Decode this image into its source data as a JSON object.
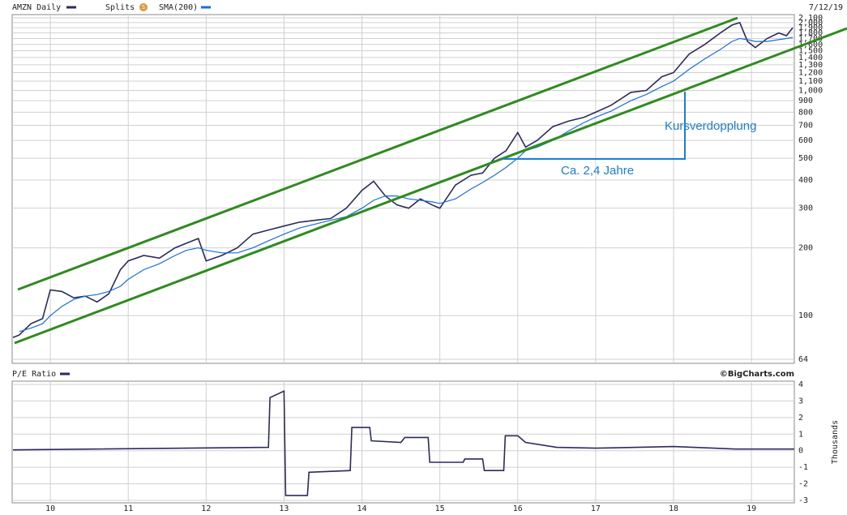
{
  "chart_data": [
    {
      "type": "line",
      "date_label": "7/12/19",
      "splits_label": "Splits",
      "splits_icon": "S",
      "log_scale": true,
      "grid": true,
      "annotations": [
        "Kursverdopplung",
        "Ca. 2,4 Jahre"
      ],
      "xlim": [
        2009.51,
        2019.55
      ],
      "ylim": [
        64,
        2100
      ],
      "yticks": [
        64,
        100,
        200,
        300,
        400,
        500,
        600,
        700,
        800,
        900,
        {
          "value": 1000,
          "label": "1,000"
        },
        {
          "value": 1100,
          "label": "1,100"
        },
        {
          "value": 1200,
          "label": "1,200"
        },
        {
          "value": 1300,
          "label": "1,300"
        },
        {
          "value": 1400,
          "label": "1,400"
        },
        {
          "value": 1500,
          "label": "1,500"
        },
        {
          "value": 1600,
          "label": "1,600"
        },
        {
          "value": 1700,
          "label": "1,700"
        },
        {
          "value": 1800,
          "label": "1,800"
        },
        {
          "value": 1900,
          "label": "1,900"
        },
        {
          "value": 2000,
          "label": "2,000"
        },
        {
          "value": 2100,
          "label": "2,100"
        }
      ],
      "x": [
        2009.52,
        2009.6,
        2009.75,
        2009.9,
        2010.0,
        2010.15,
        2010.3,
        2010.45,
        2010.6,
        2010.75,
        2010.9,
        2011.0,
        2011.2,
        2011.4,
        2011.6,
        2011.75,
        2011.9,
        2012.0,
        2012.2,
        2012.4,
        2012.6,
        2012.8,
        2013.0,
        2013.2,
        2013.4,
        2013.6,
        2013.8,
        2014.0,
        2014.15,
        2014.3,
        2014.45,
        2014.6,
        2014.75,
        2014.9,
        2015.0,
        2015.2,
        2015.4,
        2015.55,
        2015.7,
        2015.85,
        2016.0,
        2016.1,
        2016.25,
        2016.45,
        2016.65,
        2016.85,
        2017.0,
        2017.2,
        2017.45,
        2017.65,
        2017.85,
        2018.0,
        2018.2,
        2018.4,
        2018.6,
        2018.75,
        2018.85,
        2018.95,
        2019.05,
        2019.2,
        2019.35,
        2019.45,
        2019.53
      ],
      "series": [
        {
          "name": "AMZN Daily",
          "color": "#2b2b5e",
          "values": [
            80,
            82,
            92,
            97,
            130,
            128,
            120,
            122,
            115,
            125,
            160,
            175,
            185,
            180,
            200,
            210,
            220,
            175,
            185,
            200,
            230,
            240,
            250,
            260,
            265,
            270,
            300,
            360,
            395,
            340,
            310,
            300,
            330,
            310,
            300,
            380,
            420,
            430,
            500,
            540,
            650,
            560,
            600,
            690,
            730,
            760,
            800,
            860,
            980,
            1000,
            1150,
            1200,
            1450,
            1600,
            1800,
            1950,
            2000,
            1650,
            1550,
            1700,
            1800,
            1750,
            1900
          ]
        },
        {
          "name": "SMA(200)",
          "color": "#1a6fd6",
          "values": [
            null,
            85,
            88,
            92,
            100,
            110,
            118,
            122,
            124,
            128,
            135,
            145,
            160,
            170,
            185,
            195,
            200,
            195,
            190,
            190,
            200,
            215,
            230,
            245,
            255,
            265,
            275,
            300,
            325,
            340,
            340,
            330,
            325,
            320,
            315,
            330,
            365,
            390,
            420,
            455,
            500,
            540,
            560,
            600,
            660,
            720,
            760,
            810,
            900,
            960,
            1040,
            1100,
            1240,
            1380,
            1520,
            1650,
            1700,
            1680,
            1650,
            1650,
            1680,
            1700,
            1720
          ]
        }
      ]
    },
    {
      "type": "line",
      "copyright": "©BigCharts.com",
      "y_label": "Thousands",
      "grid": true,
      "xlim": [
        2009.51,
        2019.55
      ],
      "xticks": [
        {
          "value": 2010,
          "label": "10"
        },
        {
          "value": 2011,
          "label": "11"
        },
        {
          "value": 2012,
          "label": "12"
        },
        {
          "value": 2013,
          "label": "13"
        },
        {
          "value": 2014,
          "label": "14"
        },
        {
          "value": 2015,
          "label": "15"
        },
        {
          "value": 2016,
          "label": "16"
        },
        {
          "value": 2017,
          "label": "17"
        },
        {
          "value": 2018,
          "label": "18"
        },
        {
          "value": 2019,
          "label": "19"
        }
      ],
      "ylim": [
        -3,
        4
      ],
      "yticks": [
        4,
        3,
        2,
        1,
        0,
        -1,
        -2,
        -3
      ],
      "x": [
        2009.52,
        2012.8,
        2012.82,
        2013.0,
        2013.02,
        2013.3,
        2013.32,
        2013.85,
        2013.87,
        2014.1,
        2014.12,
        2014.5,
        2014.55,
        2014.85,
        2014.87,
        2015.3,
        2015.32,
        2015.55,
        2015.57,
        2015.82,
        2015.84,
        2016.0,
        2016.1,
        2016.5,
        2017.0,
        2018.0,
        2018.8,
        2019.55
      ],
      "series": [
        {
          "name": "P/E Ratio",
          "color": "#2b2b5e",
          "values": [
            0.05,
            0.2,
            3.2,
            3.6,
            -2.7,
            -2.7,
            -1.3,
            -1.2,
            1.4,
            1.4,
            0.6,
            0.5,
            0.8,
            0.8,
            -0.7,
            -0.7,
            -0.5,
            -0.5,
            -1.2,
            -1.2,
            0.9,
            0.9,
            0.5,
            0.2,
            0.15,
            0.25,
            0.1,
            0.1
          ]
        }
      ]
    }
  ]
}
